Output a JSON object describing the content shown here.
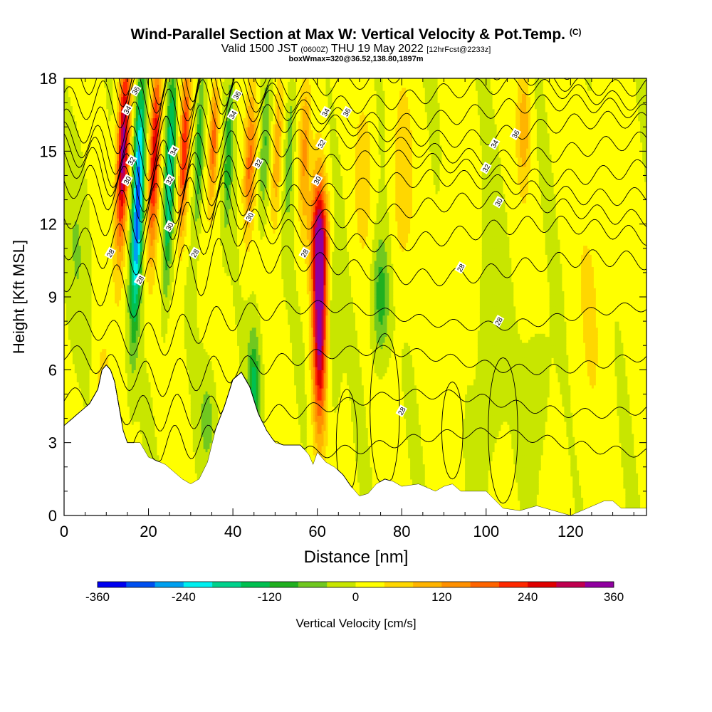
{
  "header": {
    "title": "Wind-Parallel Section at Max W: Vertical Velocity & Pot.Temp.",
    "copyright": "(C)",
    "valid_prefix": "Valid 1500 JST",
    "valid_utc": "(0600Z)",
    "valid_date": "THU 19 May 2022",
    "forecast_info": "[12hrFcst@2233z]",
    "box_info": "boxWmax=320@36.52,138.80,1897m"
  },
  "chart_data": {
    "type": "heatmap",
    "title": "Wind-Parallel Section at Max W: Vertical Velocity & Pot.Temp.",
    "xlabel": "Distance [nm]",
    "ylabel": "Height [Kft MSL]",
    "xlim": [
      0,
      138
    ],
    "ylim": [
      0,
      18
    ],
    "x_ticks": [
      0,
      20,
      40,
      60,
      80,
      100,
      120
    ],
    "x_tick_labels": [
      "0",
      "20",
      "40",
      "60",
      "80",
      "100",
      "120"
    ],
    "y_ticks": [
      0,
      3,
      6,
      9,
      12,
      15,
      18
    ],
    "y_tick_labels": [
      "0",
      "3",
      "6",
      "9",
      "12",
      "15",
      "18"
    ],
    "colorbar": {
      "label": "Vertical Velocity [cm/s]",
      "range": [
        -360,
        360
      ],
      "step": 40,
      "tick_values": [
        -360,
        -240,
        -120,
        0,
        120,
        240,
        360
      ],
      "tick_labels": [
        "-360",
        "-240",
        "-120",
        "0",
        "120",
        "240",
        "360"
      ],
      "colors": [
        "#0000f0",
        "#0050f0",
        "#00a0f0",
        "#00f0f0",
        "#00d28c",
        "#00c050",
        "#20b020",
        "#70c820",
        "#c8e600",
        "#ffff00",
        "#ffd700",
        "#ffb400",
        "#ff9000",
        "#ff6400",
        "#ff2800",
        "#e00000",
        "#c00050",
        "#9000a0"
      ]
    },
    "terrain_profile": {
      "x": [
        0,
        2,
        4,
        6,
        8,
        9,
        10,
        11,
        12,
        13,
        14,
        15,
        18,
        20,
        24,
        26,
        28,
        30,
        32,
        34,
        36,
        38,
        40,
        42,
        44,
        46,
        48,
        50,
        52,
        56,
        58,
        59,
        60,
        62,
        64,
        66,
        68,
        70,
        72,
        74,
        76,
        78,
        80,
        84,
        88,
        90,
        92,
        94,
        96,
        100,
        104,
        108,
        112,
        116,
        120,
        124,
        128,
        130,
        132,
        136,
        138
      ],
      "y": [
        3.7,
        4.0,
        4.3,
        4.6,
        5.2,
        6.0,
        6.2,
        6.0,
        5.5,
        4.5,
        3.5,
        3.0,
        3.0,
        2.4,
        2.1,
        1.8,
        1.5,
        1.3,
        1.5,
        2.2,
        3.6,
        4.5,
        5.6,
        5.9,
        5.3,
        4.2,
        3.5,
        3.0,
        2.9,
        2.9,
        2.5,
        2.1,
        2.6,
        2.2,
        2.0,
        1.7,
        1.2,
        0.8,
        0.9,
        1.3,
        1.5,
        1.4,
        1.2,
        1.3,
        1.0,
        1.2,
        1.3,
        1.0,
        1.0,
        1.0,
        0.3,
        0.2,
        0.4,
        0.2,
        0.0,
        0.3,
        0.6,
        0.6,
        0.3,
        0.3,
        0.3
      ]
    },
    "w_features": [
      {
        "x": 14,
        "z": 15,
        "rx": 1.4,
        "rz": 4,
        "tilt": 0.18,
        "value": 340
      },
      {
        "x": 17.5,
        "z": 13,
        "rx": 1.3,
        "rz": 5,
        "tilt": 0.18,
        "value": -320
      },
      {
        "x": 21.5,
        "z": 15,
        "rx": 1.2,
        "rz": 4,
        "tilt": 0.2,
        "value": 260
      },
      {
        "x": 25,
        "z": 14,
        "rx": 1.1,
        "rz": 4.5,
        "tilt": 0.2,
        "value": -200
      },
      {
        "x": 28.5,
        "z": 15,
        "rx": 1.1,
        "rz": 3.5,
        "tilt": 0.2,
        "value": 230
      },
      {
        "x": 32,
        "z": 15,
        "rx": 1.0,
        "rz": 3,
        "tilt": 0.2,
        "value": -140
      },
      {
        "x": 35.5,
        "z": 15.5,
        "rx": 1.0,
        "rz": 2.5,
        "tilt": 0.2,
        "value": 180
      },
      {
        "x": 39,
        "z": 15,
        "rx": 1.0,
        "rz": 3,
        "tilt": 0.2,
        "value": -120
      },
      {
        "x": 44,
        "z": 14.5,
        "rx": 1.3,
        "rz": 3,
        "tilt": 0.2,
        "value": 150
      },
      {
        "x": 47.5,
        "z": 15,
        "rx": 1.1,
        "rz": 3,
        "tilt": 0.2,
        "value": -90
      },
      {
        "x": 50.5,
        "z": 15,
        "rx": 1.1,
        "rz": 3,
        "tilt": 0.2,
        "value": 120
      },
      {
        "x": 53.5,
        "z": 15,
        "rx": 1.0,
        "rz": 3,
        "tilt": 0.2,
        "value": -80
      },
      {
        "x": 57,
        "z": 15,
        "rx": 1.2,
        "rz": 3,
        "tilt": 0.15,
        "value": 110
      },
      {
        "x": 60.5,
        "z": 8.5,
        "rx": 1.6,
        "rz": 4.8,
        "tilt": 0.0,
        "value": 360
      },
      {
        "x": 60.5,
        "z": 11.5,
        "rx": 2.5,
        "rz": 2,
        "tilt": 0.0,
        "value": 140
      },
      {
        "x": 64,
        "z": 8,
        "rx": 1.5,
        "rz": 4,
        "tilt": 0.0,
        "value": -50
      },
      {
        "x": 75,
        "z": 9,
        "rx": 2.0,
        "rz": 2.5,
        "tilt": 0.0,
        "value": -120
      },
      {
        "x": 71,
        "z": 14,
        "rx": 2.0,
        "rz": 3,
        "tilt": 0.1,
        "value": 60
      },
      {
        "x": 80,
        "z": 13.5,
        "rx": 2.5,
        "rz": 4,
        "tilt": 0.05,
        "value": 60
      },
      {
        "x": 92,
        "z": 9,
        "rx": 2.5,
        "rz": 5,
        "tilt": 0.0,
        "value": 40
      },
      {
        "x": 101,
        "z": 7,
        "rx": 3.0,
        "rz": 5,
        "tilt": 0.0,
        "value": -45
      },
      {
        "x": 109,
        "z": 16,
        "rx": 1.5,
        "rz": 2.5,
        "tilt": 0.0,
        "value": 100
      },
      {
        "x": 112,
        "z": 5,
        "rx": 3.0,
        "rz": 3,
        "tilt": 0.0,
        "value": -40
      },
      {
        "x": 125,
        "z": 9,
        "rx": 4.0,
        "rz": 6,
        "tilt": 0.0,
        "value": 30
      },
      {
        "x": 9,
        "z": 5,
        "rx": 2.0,
        "rz": 2.5,
        "tilt": 0.0,
        "value": 50
      },
      {
        "x": 3,
        "z": 11,
        "rx": 3.0,
        "rz": 4,
        "tilt": 0.0,
        "value": -40
      },
      {
        "x": 45,
        "z": 5,
        "rx": 1.5,
        "rz": 2.5,
        "tilt": 0.0,
        "value": -150
      },
      {
        "x": 34,
        "z": 4,
        "rx": 2.0,
        "rz": 2,
        "tilt": 0.0,
        "value": -60
      }
    ],
    "theta_contours": {
      "levels": [
        28,
        30,
        32,
        34,
        36
      ],
      "labels": [
        {
          "text": "28",
          "x": 11,
          "z": 10.8
        },
        {
          "text": "28",
          "x": 18,
          "z": 9.7
        },
        {
          "text": "28",
          "x": 31,
          "z": 10.8
        },
        {
          "text": "28",
          "x": 57,
          "z": 10.8
        },
        {
          "text": "28",
          "x": 94,
          "z": 10.2
        },
        {
          "text": "28",
          "x": 103,
          "z": 8.0
        },
        {
          "text": "28",
          "x": 80,
          "z": 4.3
        },
        {
          "text": "30",
          "x": 15,
          "z": 13.8
        },
        {
          "text": "30",
          "x": 25,
          "z": 11.9
        },
        {
          "text": "30",
          "x": 44,
          "z": 12.3
        },
        {
          "text": "30",
          "x": 60,
          "z": 13.8
        },
        {
          "text": "30",
          "x": 103,
          "z": 12.9
        },
        {
          "text": "32",
          "x": 16,
          "z": 14.6
        },
        {
          "text": "32",
          "x": 25,
          "z": 13.8
        },
        {
          "text": "32",
          "x": 46,
          "z": 14.5
        },
        {
          "text": "32",
          "x": 61,
          "z": 15.3
        },
        {
          "text": "32",
          "x": 100,
          "z": 14.3
        },
        {
          "text": "34",
          "x": 15,
          "z": 16.7
        },
        {
          "text": "34",
          "x": 26,
          "z": 15.0
        },
        {
          "text": "34",
          "x": 40,
          "z": 16.5
        },
        {
          "text": "34",
          "x": 62,
          "z": 16.6
        },
        {
          "text": "34",
          "x": 102,
          "z": 15.3
        },
        {
          "text": "36",
          "x": 17,
          "z": 17.5
        },
        {
          "text": "36",
          "x": 41,
          "z": 17.3
        },
        {
          "text": "36",
          "x": 67,
          "z": 16.6
        },
        {
          "text": "36",
          "x": 107,
          "z": 15.7
        }
      ]
    }
  }
}
